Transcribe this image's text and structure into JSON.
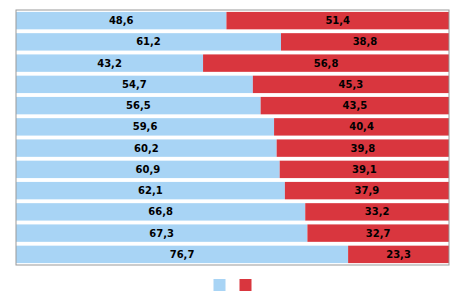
{
  "chart_data": {
    "type": "bar",
    "orientation": "horizontal",
    "stacked": true,
    "categories": [
      null,
      null,
      null,
      null,
      null,
      null,
      null,
      null,
      null,
      null,
      null,
      null
    ],
    "series": [
      {
        "color": "#a8d4f5",
        "values": [
          48.6,
          61.2,
          43.2,
          54.7,
          56.5,
          59.6,
          60.2,
          60.9,
          62.1,
          66.8,
          67.3,
          76.7
        ],
        "value_labels": [
          "48,6",
          "61,2",
          "43,2",
          "54,7",
          "56,5",
          "59,6",
          "60,2",
          "60,9",
          "62,1",
          "66,8",
          "67,3",
          "76,7"
        ]
      },
      {
        "color": "#d9363e",
        "values": [
          51.4,
          38.8,
          56.8,
          45.3,
          43.5,
          40.4,
          39.8,
          39.1,
          37.9,
          33.2,
          32.7,
          23.3
        ],
        "value_labels": [
          "51,4",
          "38,8",
          "56,8",
          "45,3",
          "43,5",
          "40,4",
          "39,8",
          "39,1",
          "37,9",
          "33,2",
          "32,7",
          "23,3"
        ]
      }
    ],
    "xlim": [
      0,
      100
    ],
    "data_labels": true,
    "tick_labels": false,
    "legend": "bottom"
  }
}
